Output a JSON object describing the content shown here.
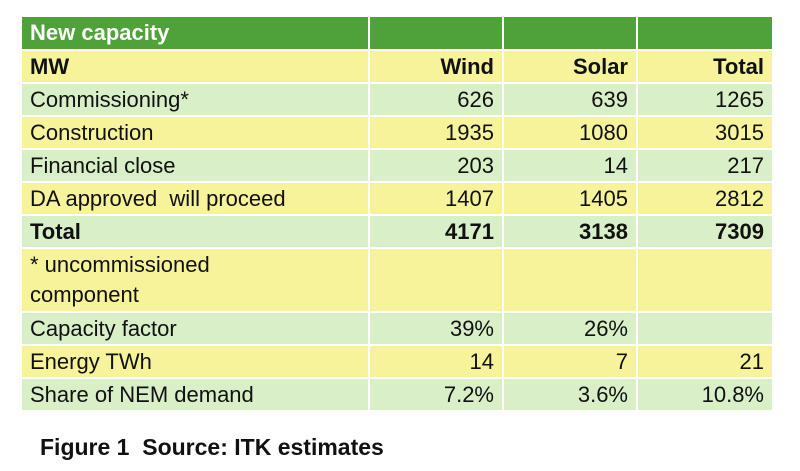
{
  "table": {
    "title": "New capacity",
    "header": {
      "label": "MW",
      "wind": "Wind",
      "solar": "Solar",
      "total": "Total"
    },
    "rows": [
      {
        "label": "Commissioning*",
        "wind": "626",
        "solar": "639",
        "total": "1265"
      },
      {
        "label": "Construction",
        "wind": "1935",
        "solar": "1080",
        "total": "3015"
      },
      {
        "label": "Financial close",
        "wind": "203",
        "solar": "14",
        "total": "217"
      },
      {
        "label": "DA approved  will proceed",
        "wind": "1407",
        "solar": "1405",
        "total": "2812"
      }
    ],
    "total_row": {
      "label": "Total",
      "wind": "4171",
      "solar": "3138",
      "total": "7309"
    },
    "footnote": "* uncommissioned component",
    "stats": [
      {
        "label": "Capacity factor",
        "wind": "39%",
        "solar": "26%",
        "total": ""
      },
      {
        "label": "Energy TWh",
        "wind": "14",
        "solar": "7",
        "total": "21"
      },
      {
        "label": "Share of NEM demand",
        "wind": "7.2%",
        "solar": "3.6%",
        "total": "10.8%"
      }
    ]
  },
  "caption": "Figure 1  Source: ITK estimates",
  "colors": {
    "title_band": "#4fa23a",
    "yellow_band": "#f6f39a",
    "green_band": "#d8efc7"
  }
}
